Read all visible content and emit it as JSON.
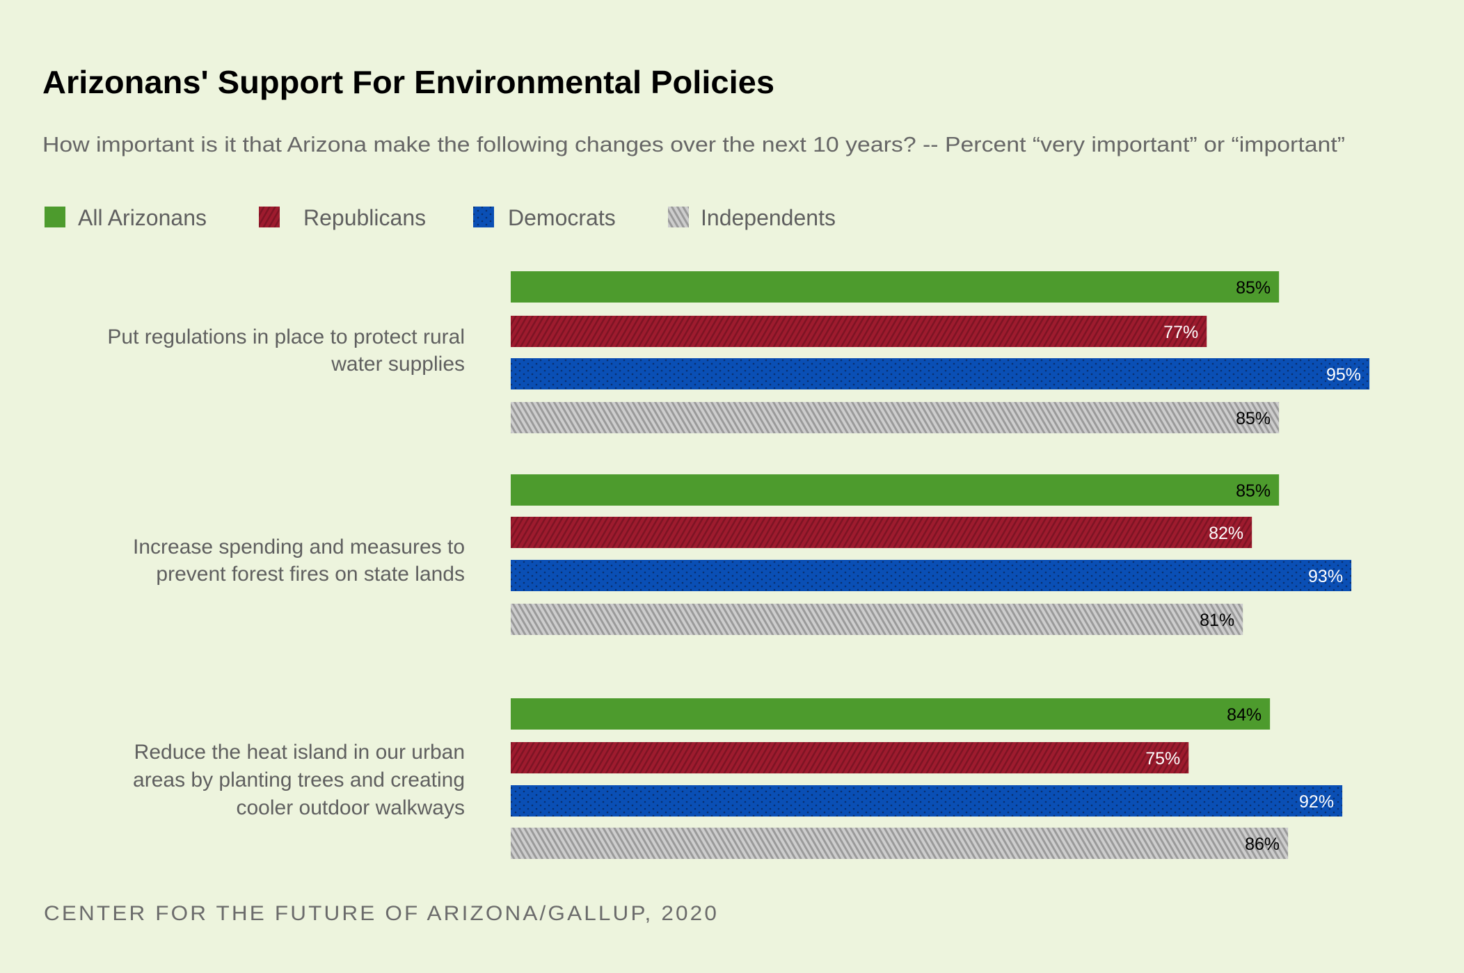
{
  "chart_data": {
    "type": "bar",
    "orientation": "horizontal",
    "title": "Arizonans' Support For Environmental Policies",
    "subtitle": "How important is it that Arizona make the following changes over the next 10 years? -- Percent “very important” or “important”",
    "source": "CENTER FOR THE FUTURE OF ARIZONA/GALLUP, 2020",
    "categories": [
      [
        "Put regulations in place to protect rural",
        "water supplies"
      ],
      [
        "Increase spending and measures to",
        "prevent forest fires on state lands"
      ],
      [
        "Reduce the heat island in our urban",
        "areas by planting trees and creating",
        "cooler outdoor walkways"
      ]
    ],
    "series": [
      {
        "name": "All Arizonans",
        "values": [
          85,
          85,
          84
        ],
        "color": "#4d9b2d",
        "pattern": "solid",
        "label_color": "#000000"
      },
      {
        "name": "Republicans",
        "values": [
          77,
          82,
          75
        ],
        "color": "#9e1b2e",
        "pattern": "diagonal-stripes",
        "label_color": "#ffffff"
      },
      {
        "name": "Democrats",
        "values": [
          95,
          93,
          92
        ],
        "color": "#0a4fb5",
        "pattern": "dots",
        "label_color": "#ffffff"
      },
      {
        "name": "Independents",
        "values": [
          85,
          81,
          86
        ],
        "color": "#c4c4c4",
        "pattern": "diagonal-stripes",
        "label_color": "#000000"
      }
    ],
    "value_suffix": "%",
    "xlim": [
      0,
      100
    ],
    "grid": false,
    "legend": "top-left"
  }
}
